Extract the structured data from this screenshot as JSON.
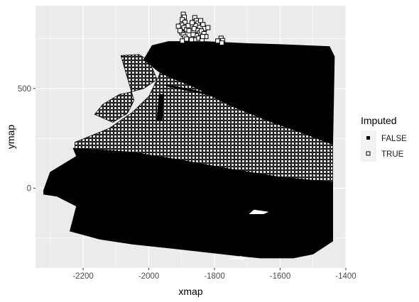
{
  "chart_data": {
    "type": "scatter",
    "xlabel": "xmap",
    "ylabel": "ymap",
    "xlim": [
      -2345,
      -1400
    ],
    "ylim": [
      -400,
      915
    ],
    "x_ticks": [
      -2200,
      -2000,
      -1800,
      -1600,
      -1400
    ],
    "x_tick_labels": [
      "-2200",
      "-2000",
      "-1800",
      "-1600",
      "-1400"
    ],
    "y_ticks": [
      0,
      500
    ],
    "y_tick_labels": [
      "0",
      "500"
    ],
    "grid": true,
    "legend": {
      "title": "Imputed",
      "position": "right",
      "entries": [
        {
          "label": "FALSE",
          "marker": "filled-square"
        },
        {
          "label": "TRUE",
          "marker": "open-square"
        }
      ]
    },
    "series": [
      {
        "name": "FALSE",
        "marker": "filled-square",
        "color": "#000000",
        "regions": [
          {
            "role": "lower-band",
            "polygon": [
              [
                -2320,
                -10
              ],
              [
                -2300,
                80
              ],
              [
                -2220,
                160
              ],
              [
                -2230,
                200
              ],
              [
                -2050,
                180
              ],
              [
                -1900,
                140
              ],
              [
                -1750,
                95
              ],
              [
                -1600,
                55
              ],
              [
                -1440,
                30
              ],
              [
                -1440,
                -265
              ],
              [
                -1500,
                -330
              ],
              [
                -1560,
                -350
              ],
              [
                -1660,
                -350
              ],
              [
                -1720,
                -340
              ],
              [
                -1880,
                -310
              ],
              [
                -2050,
                -280
              ],
              [
                -2150,
                -255
              ],
              [
                -2240,
                -215
              ],
              [
                -2220,
                -90
              ],
              [
                -2280,
                -40
              ],
              [
                -2320,
                -30
              ]
            ]
          },
          {
            "role": "upper-wedge",
            "polygon": [
              [
                -2015,
                645
              ],
              [
                -1990,
                715
              ],
              [
                -1940,
                735
              ],
              [
                -1830,
                735
              ],
              [
                -1700,
                725
              ],
              [
                -1600,
                720
              ],
              [
                -1450,
                710
              ],
              [
                -1435,
                660
              ],
              [
                -1440,
                220
              ],
              [
                -1520,
                270
              ],
              [
                -1640,
                340
              ],
              [
                -1760,
                420
              ],
              [
                -1840,
                490
              ],
              [
                -1880,
                520
              ],
              [
                -1935,
                555
              ],
              [
                -1970,
                585
              ]
            ]
          },
          {
            "role": "diagonal-strip",
            "polygon": [
              [
                -1945,
                520
              ],
              [
                -1890,
                500
              ],
              [
                -1800,
                470
              ],
              [
                -1700,
                440
              ],
              [
                -1600,
                410
              ],
              [
                -1500,
                380
              ],
              [
                -1500,
                372
              ],
              [
                -1600,
                402
              ],
              [
                -1700,
                432
              ],
              [
                -1800,
                462
              ],
              [
                -1890,
                492
              ],
              [
                -1945,
                512
              ]
            ]
          },
          {
            "role": "vertical-streak",
            "polygon": [
              [
                -1975,
                340
              ],
              [
                -1960,
                340
              ],
              [
                -1955,
                470
              ],
              [
                -1968,
                470
              ]
            ]
          }
        ],
        "holes": [
          {
            "role": "inner-notch",
            "polygon": [
              [
                -1695,
                -130
              ],
              [
                -1650,
                -130
              ],
              [
                -1635,
                -118
              ],
              [
                -1680,
                -108
              ]
            ]
          },
          {
            "role": "lower-notch",
            "polygon": [
              [
                -1720,
                -340
              ],
              [
                -1700,
                -350
              ],
              [
                -1720,
                -360
              ],
              [
                -1760,
                -355
              ]
            ]
          }
        ]
      },
      {
        "name": "TRUE",
        "marker": "open-square",
        "color": "#000000",
        "regions": [
          {
            "role": "middle-band",
            "polygon": [
              [
                -2225,
                200
              ],
              [
                -2225,
                230
              ],
              [
                -2120,
                300
              ],
              [
                -2050,
                380
              ],
              [
                -2000,
                460
              ],
              [
                -1970,
                560
              ],
              [
                -1960,
                610
              ],
              [
                -1920,
                570
              ],
              [
                -1850,
                520
              ],
              [
                -1760,
                470
              ],
              [
                -1650,
                420
              ],
              [
                -1560,
                380
              ],
              [
                -1440,
                320
              ],
              [
                -1440,
                30
              ],
              [
                -1600,
                55
              ],
              [
                -1750,
                95
              ],
              [
                -1900,
                140
              ],
              [
                -2050,
                180
              ]
            ]
          },
          {
            "role": "upper-left-band",
            "polygon": [
              [
                -2085,
                665
              ],
              [
                -2030,
                670
              ],
              [
                -2000,
                640
              ],
              [
                -1985,
                585
              ],
              [
                -1975,
                545
              ],
              [
                -2015,
                500
              ],
              [
                -2060,
                480
              ],
              [
                -2090,
                470
              ],
              [
                -2140,
                420
              ],
              [
                -2165,
                370
              ],
              [
                -2110,
                330
              ],
              [
                -2065,
                375
              ],
              [
                -2045,
                440
              ]
            ]
          }
        ],
        "points": [
          [
            -1895,
            872
          ],
          [
            -1892,
            858
          ],
          [
            -1898,
            845
          ],
          [
            -1890,
            832
          ],
          [
            -1900,
            818
          ],
          [
            -1893,
            805
          ],
          [
            -1885,
            795
          ],
          [
            -1900,
            780
          ],
          [
            -1895,
            770
          ],
          [
            -1890,
            758
          ],
          [
            -1885,
            748
          ],
          [
            -1898,
            738
          ],
          [
            -1905,
            790
          ],
          [
            -1880,
            815
          ],
          [
            -1878,
            790
          ],
          [
            -1910,
            812
          ],
          [
            -1860,
            855
          ],
          [
            -1855,
            840
          ],
          [
            -1850,
            828
          ],
          [
            -1858,
            815
          ],
          [
            -1862,
            800
          ],
          [
            -1850,
            790
          ],
          [
            -1845,
            778
          ],
          [
            -1855,
            765
          ],
          [
            -1848,
            752
          ],
          [
            -1838,
            745
          ],
          [
            -1842,
            840
          ],
          [
            -1835,
            820
          ],
          [
            -1830,
            800
          ],
          [
            -1840,
            788
          ],
          [
            -1868,
            830
          ],
          [
            -1865,
            770
          ],
          [
            -1832,
            775
          ],
          [
            -1826,
            760
          ],
          [
            -1870,
            745
          ],
          [
            -1820,
            805
          ],
          [
            -1836,
            760
          ],
          [
            -1780,
            752
          ],
          [
            -1775,
            740
          ],
          [
            -1790,
            738
          ],
          [
            -1778,
            728
          ]
        ]
      }
    ]
  }
}
